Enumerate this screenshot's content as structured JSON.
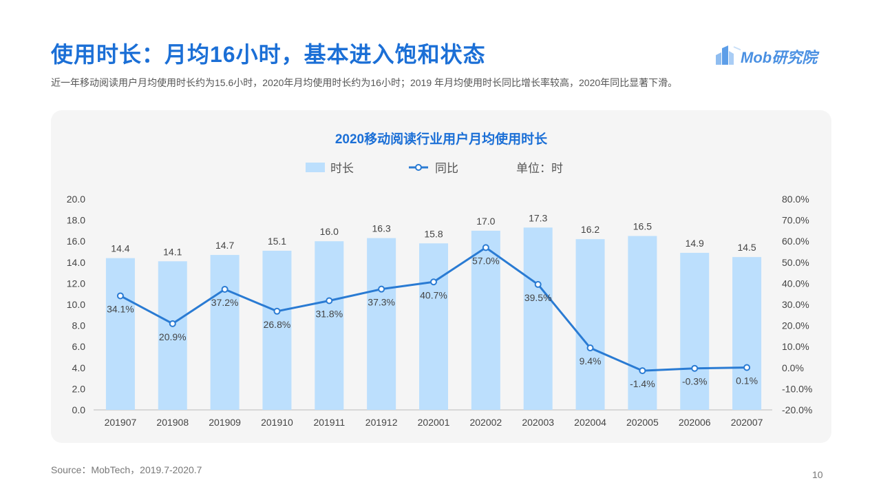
{
  "header": {
    "title": "使用时长：月均16小时，基本进入饱和状态",
    "subtitle": "近一年移动阅读用户月均使用时长约为15.6小时，2020年月均使用时长约为16小时；2019  年月均使用时长同比增长率较高，2020年同比显著下滑。"
  },
  "brand": {
    "logo_text": "Mob研究院"
  },
  "footer": {
    "source": "Source：MobTech，2019.7-2020.7",
    "page_number": "10"
  },
  "colors": {
    "bar": "#bcdffd",
    "line": "#2a7bd3",
    "title": "#1b6fd6",
    "text": "#444444"
  },
  "chart_data": {
    "type": "bar",
    "title": "2020移动阅读行业用户月均使用时长",
    "legend": [
      {
        "label": "时长",
        "kind": "bar"
      },
      {
        "label": "同比",
        "kind": "line"
      },
      {
        "label": "单位：时",
        "kind": "text"
      }
    ],
    "legend_position": "top-center",
    "categories": [
      "201907",
      "201908",
      "201909",
      "201910",
      "201911",
      "201912",
      "202001",
      "202002",
      "202003",
      "202004",
      "202005",
      "202006",
      "202007"
    ],
    "series": [
      {
        "name": "时长",
        "type": "bar",
        "axis": "left",
        "values": [
          14.4,
          14.1,
          14.7,
          15.1,
          16.0,
          16.3,
          15.8,
          17.0,
          17.3,
          16.2,
          16.5,
          14.9,
          14.5
        ],
        "labels": [
          "14.4",
          "14.1",
          "14.7",
          "15.1",
          "16.0",
          "16.3",
          "15.8",
          "17.0",
          "17.3",
          "16.2",
          "16.5",
          "14.9",
          "14.5"
        ]
      },
      {
        "name": "同比",
        "type": "line",
        "axis": "right",
        "values": [
          34.1,
          20.9,
          37.2,
          26.8,
          31.8,
          37.3,
          40.7,
          57.0,
          39.5,
          9.4,
          -1.4,
          -0.3,
          0.1
        ],
        "labels": [
          "34.1%",
          "20.9%",
          "37.2%",
          "26.8%",
          "31.8%",
          "37.3%",
          "40.7%",
          "57.0%",
          "39.5%",
          "9.4%",
          "-1.4%",
          "-0.3%",
          "0.1%"
        ]
      }
    ],
    "y_left": {
      "ylim": [
        0,
        20
      ],
      "ticks": [
        "0.0",
        "2.0",
        "4.0",
        "6.0",
        "8.0",
        "10.0",
        "12.0",
        "14.0",
        "16.0",
        "18.0",
        "20.0"
      ]
    },
    "y_right": {
      "ylim": [
        -20,
        80
      ],
      "ticks": [
        "-20.0%",
        "-10.0%",
        "0.0%",
        "10.0%",
        "20.0%",
        "30.0%",
        "40.0%",
        "50.0%",
        "60.0%",
        "70.0%",
        "80.0%"
      ]
    },
    "grid": false
  }
}
